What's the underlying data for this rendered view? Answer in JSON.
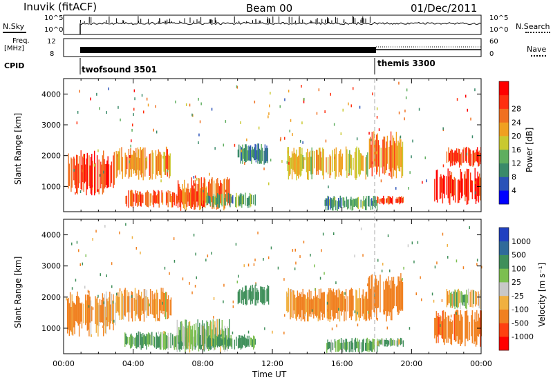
{
  "header": {
    "station": "Inuvik (fitACF)",
    "beam": "Beam 00",
    "date": "01/Dec/2011"
  },
  "sky_panel": {
    "left_label": "N.Sky",
    "left_ticks": [
      "10^5",
      "10^0"
    ],
    "right_ticks": [
      "10^5",
      "10^0"
    ],
    "right_label": "N.Search"
  },
  "freq_panel": {
    "left_label_1": "Freq.",
    "left_label_2": "[MHz]",
    "left_ticks": [
      "12",
      "8"
    ],
    "right_ticks": [
      "60",
      "0"
    ],
    "right_label": "Nave"
  },
  "cpid": {
    "label": "CPID",
    "segments": [
      {
        "name": "twofsound 3501",
        "start_hour": 1.0
      },
      {
        "name": "themis 3300",
        "start_hour": 18.0
      }
    ]
  },
  "chart_data": [
    {
      "type": "heatmap",
      "panel": "power",
      "ylabel": "Slant Range [km]",
      "yticks": [
        "1000",
        "2000",
        "3000",
        "4000"
      ],
      "ylim": [
        180,
        4500
      ],
      "xlim": [
        0,
        24
      ],
      "colorbar": {
        "label": "Power [dB]",
        "ticks": [
          "4",
          "8",
          "12",
          "16",
          "20",
          "24",
          "28"
        ],
        "colors": [
          "#0000ff",
          "#2a52b8",
          "#3a8a6a",
          "#5fae5f",
          "#c9c930",
          "#f0a020",
          "#f07020",
          "#ff3010",
          "#ff0000"
        ]
      },
      "blobs": [
        {
          "x0": 0.2,
          "x1": 3.0,
          "y0": 700,
          "y1": 2200,
          "value": 26
        },
        {
          "x0": 3.0,
          "x1": 6.2,
          "y0": 1200,
          "y1": 2300,
          "value": 20
        },
        {
          "x0": 3.5,
          "x1": 8.5,
          "y0": 300,
          "y1": 900,
          "value": 24
        },
        {
          "x0": 6.5,
          "x1": 9.5,
          "y0": 200,
          "y1": 1300,
          "value": 22
        },
        {
          "x0": 8.2,
          "x1": 11.0,
          "y0": 300,
          "y1": 800,
          "value": 8
        },
        {
          "x0": 10.0,
          "x1": 11.8,
          "y0": 1700,
          "y1": 2400,
          "value": 6
        },
        {
          "x0": 12.8,
          "x1": 17.5,
          "y0": 1200,
          "y1": 2300,
          "value": 16
        },
        {
          "x0": 15.0,
          "x1": 18.0,
          "y0": 200,
          "y1": 700,
          "value": 8
        },
        {
          "x0": 17.5,
          "x1": 19.5,
          "y0": 1200,
          "y1": 2800,
          "value": 20
        },
        {
          "x0": 18.0,
          "x1": 19.5,
          "y0": 400,
          "y1": 700,
          "value": 26
        },
        {
          "x0": 21.3,
          "x1": 24.0,
          "y0": 400,
          "y1": 1600,
          "value": 28
        },
        {
          "x0": 22.0,
          "x1": 24.0,
          "y0": 1600,
          "y1": 2300,
          "value": 26
        }
      ]
    },
    {
      "type": "heatmap",
      "panel": "velocity",
      "ylabel": "Slant Range [km]",
      "yticks": [
        "1000",
        "2000",
        "3000",
        "4000"
      ],
      "xlabel": "Time UT",
      "xticks": [
        "00:00",
        "04:00",
        "08:00",
        "12:00",
        "16:00",
        "20:00",
        "00:00"
      ],
      "ylim": [
        180,
        4500
      ],
      "xlim": [
        0,
        24
      ],
      "colorbar": {
        "label": "Velocity [m s⁻¹]",
        "ticks": [
          "1000",
          "500",
          "100",
          "25",
          "-25",
          "-100",
          "-500",
          "-1000"
        ],
        "colors": [
          "#2040c0",
          "#2f6a9a",
          "#3f8f5a",
          "#7cbf50",
          "#c8c8c8",
          "#f0b040",
          "#f08020",
          "#ff4010",
          "#ff0000"
        ]
      },
      "blobs": [
        {
          "x0": 0.2,
          "x1": 3.0,
          "y0": 700,
          "y1": 2200,
          "value": -150
        },
        {
          "x0": 3.0,
          "x1": 6.2,
          "y0": 1200,
          "y1": 2300,
          "value": -120
        },
        {
          "x0": 3.5,
          "x1": 8.5,
          "y0": 300,
          "y1": 900,
          "value": 150
        },
        {
          "x0": 6.5,
          "x1": 9.5,
          "y0": 200,
          "y1": 1300,
          "value": 80
        },
        {
          "x0": 8.2,
          "x1": 11.0,
          "y0": 300,
          "y1": 800,
          "value": 200
        },
        {
          "x0": 10.0,
          "x1": 11.8,
          "y0": 1700,
          "y1": 2400,
          "value": 300
        },
        {
          "x0": 12.8,
          "x1": 17.5,
          "y0": 1200,
          "y1": 2300,
          "value": -200
        },
        {
          "x0": 15.0,
          "x1": 18.0,
          "y0": 200,
          "y1": 700,
          "value": 150
        },
        {
          "x0": 17.5,
          "x1": 19.5,
          "y0": 1200,
          "y1": 2800,
          "value": -300
        },
        {
          "x0": 18.0,
          "x1": 19.5,
          "y0": 400,
          "y1": 700,
          "value": 100
        },
        {
          "x0": 21.3,
          "x1": 24.0,
          "y0": 400,
          "y1": 1600,
          "value": -400
        },
        {
          "x0": 22.0,
          "x1": 24.0,
          "y0": 1600,
          "y1": 2300,
          "value": 10
        }
      ]
    }
  ]
}
